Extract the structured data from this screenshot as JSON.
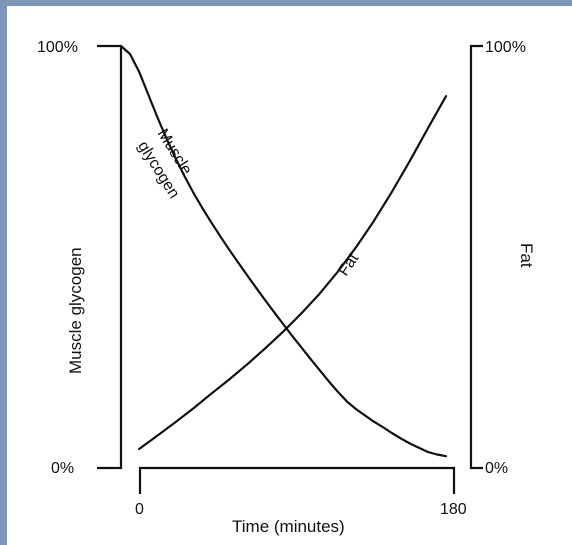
{
  "chart_data": {
    "type": "line",
    "xlabel": "Time (minutes)",
    "ylabel_left": "Muscle glycogen",
    "ylabel_right": "Fat",
    "xlim": [
      0,
      180
    ],
    "ylim": [
      0,
      100
    ],
    "x_ticks": [
      "0",
      "180"
    ],
    "y_left_ticks": [
      "0%",
      "100%"
    ],
    "y_right_ticks": [
      "0%",
      "100%"
    ],
    "grid": false,
    "legend": "none",
    "series": [
      {
        "name": "Muscle glycogen",
        "x": [
          0,
          5,
          10,
          15,
          20,
          25,
          30,
          35,
          40,
          45,
          50,
          55,
          60,
          65,
          70,
          75,
          80,
          85,
          90,
          95,
          100,
          105,
          110,
          115,
          120,
          125,
          130,
          135,
          140,
          145,
          150,
          155,
          160,
          165,
          170,
          175,
          180
        ],
        "values": [
          100,
          98.1,
          93.9,
          88.6,
          83.3,
          78.3,
          73.6,
          69.3,
          65.3,
          61.6,
          58.2,
          54.9,
          51.7,
          48.6,
          45.6,
          42.6,
          39.7,
          36.8,
          34.0,
          31.2,
          28.5,
          25.8,
          23.2,
          20.6,
          18.1,
          15.8,
          14.0,
          12.5,
          11.0,
          9.7,
          8.3,
          7.0,
          5.8,
          4.8,
          3.8,
          3.2,
          2.8
        ]
      },
      {
        "name": "Fat",
        "x": [
          10,
          20,
          30,
          40,
          50,
          60,
          70,
          80,
          90,
          100,
          110,
          120,
          130,
          140,
          150,
          160,
          170,
          180
        ],
        "values": [
          4.5,
          7.6,
          10.8,
          14.1,
          17.6,
          21.0,
          24.6,
          28.4,
          32.4,
          36.7,
          41.3,
          46.5,
          52.2,
          58.5,
          65.4,
          72.8,
          80.5,
          88.1
        ]
      }
    ]
  }
}
